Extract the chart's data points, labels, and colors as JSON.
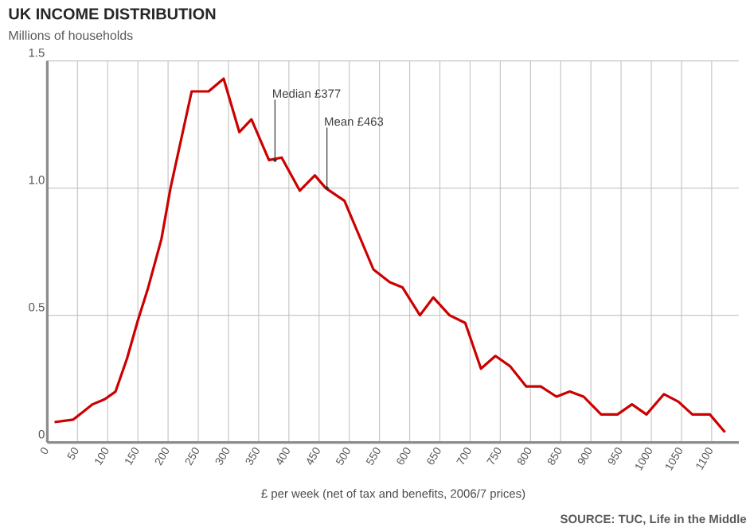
{
  "chart_data": {
    "type": "line",
    "title": "UK INCOME DISTRIBUTION",
    "ylabel": "Millions of households",
    "xlabel": "£ per week (net of tax and benefits, 2006/7 prices)",
    "x": [
      12,
      43,
      59,
      75,
      95,
      113,
      132,
      150,
      166,
      189,
      204,
      239,
      267,
      292,
      318,
      338,
      367,
      388,
      418,
      443,
      461,
      492,
      540,
      567,
      588,
      617,
      639,
      666,
      692,
      718,
      742,
      766,
      793,
      817,
      843,
      865,
      888,
      917,
      944,
      968,
      992,
      1021,
      1045,
      1068,
      1097,
      1122
    ],
    "series": [
      {
        "color": "#cc0000",
        "values": [
          0.08,
          0.09,
          0.12,
          0.15,
          0.17,
          0.2,
          0.33,
          0.48,
          0.6,
          0.8,
          1.0,
          1.38,
          1.38,
          1.43,
          1.22,
          1.27,
          1.11,
          1.12,
          0.99,
          1.05,
          1.0,
          0.95,
          0.68,
          0.63,
          0.61,
          0.5,
          0.57,
          0.5,
          0.47,
          0.29,
          0.34,
          0.3,
          0.22,
          0.22,
          0.18,
          0.2,
          0.18,
          0.11,
          0.11,
          0.15,
          0.11,
          0.19,
          0.16,
          0.11,
          0.11,
          0.04
        ]
      }
    ],
    "xlim": [
      0,
      1145
    ],
    "xticks": [
      0,
      50,
      100,
      150,
      200,
      250,
      300,
      350,
      400,
      450,
      500,
      550,
      600,
      650,
      700,
      750,
      800,
      850,
      900,
      950,
      1000,
      1050,
      1100
    ],
    "ylim": [
      0,
      1.5
    ],
    "yticks": [
      0,
      0.5,
      {
        "value": 1,
        "label": "1.0"
      },
      1.5
    ],
    "grid": true,
    "annotations": [
      {
        "text": "Median £377",
        "x": 377,
        "y": 1.11
      },
      {
        "text": "Mean £463",
        "x": 463,
        "y": 1.0
      },
      "SOURCE: TUC, Life in the Middle"
    ]
  }
}
